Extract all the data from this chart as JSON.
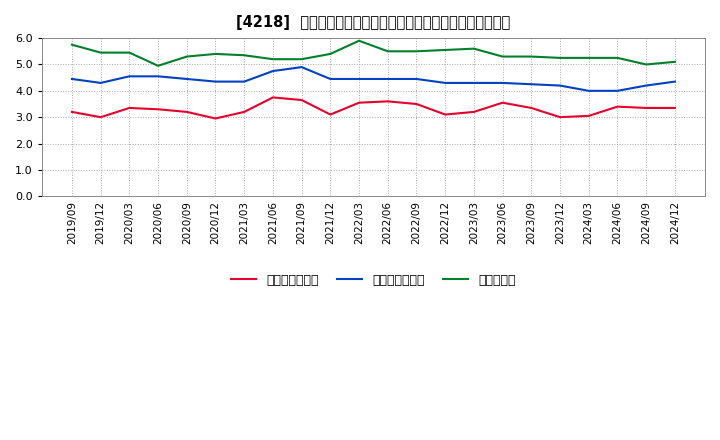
{
  "title": "[4218]  売上債権回転率、買入債務回転率、在庫回転率の推移",
  "x_labels": [
    "2019/09",
    "2019/12",
    "2020/03",
    "2020/06",
    "2020/09",
    "2020/12",
    "2021/03",
    "2021/06",
    "2021/09",
    "2021/12",
    "2022/03",
    "2022/06",
    "2022/09",
    "2022/12",
    "2023/03",
    "2023/06",
    "2023/09",
    "2023/12",
    "2024/03",
    "2024/06",
    "2024/09",
    "2024/12"
  ],
  "売上債権回転率": [
    3.2,
    3.0,
    3.35,
    3.3,
    3.2,
    2.95,
    3.2,
    3.75,
    3.65,
    3.1,
    3.55,
    3.6,
    3.5,
    3.1,
    3.2,
    3.55,
    3.35,
    3.0,
    3.05,
    3.4,
    3.35,
    3.35
  ],
  "買入債務回転率": [
    4.45,
    4.3,
    4.55,
    4.55,
    4.45,
    4.35,
    4.35,
    4.75,
    4.9,
    4.45,
    4.45,
    4.45,
    4.45,
    4.3,
    4.3,
    4.3,
    4.25,
    4.2,
    4.0,
    4.0,
    4.2,
    4.35
  ],
  "在庫回転率": [
    5.75,
    5.45,
    5.45,
    4.95,
    5.3,
    5.4,
    5.35,
    5.2,
    5.2,
    5.4,
    5.9,
    5.5,
    5.5,
    5.55,
    5.6,
    5.3,
    5.3,
    5.25,
    5.25,
    5.25,
    5.0,
    5.1
  ],
  "line_colors": {
    "売上債権回転率": "#e8002d",
    "買入債務回転率": "#0041c0",
    "在庫回転率": "#00802b"
  },
  "ylim": [
    0.0,
    6.0
  ],
  "yticks": [
    0.0,
    1.0,
    2.0,
    3.0,
    4.0,
    5.0,
    6.0
  ],
  "background_color": "#ffffff",
  "grid_color": "#aaaaaa",
  "legend_labels": [
    "売上債権回転率",
    "買入債務回転率",
    "在庫回転率"
  ]
}
